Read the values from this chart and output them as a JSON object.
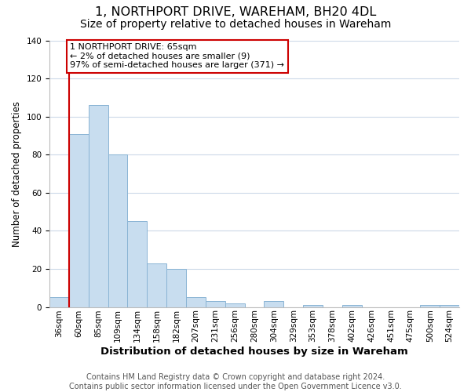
{
  "title": "1, NORTHPORT DRIVE, WAREHAM, BH20 4DL",
  "subtitle": "Size of property relative to detached houses in Wareham",
  "xlabel": "Distribution of detached houses by size in Wareham",
  "ylabel": "Number of detached properties",
  "bins": [
    "36sqm",
    "60sqm",
    "85sqm",
    "109sqm",
    "134sqm",
    "158sqm",
    "182sqm",
    "207sqm",
    "231sqm",
    "256sqm",
    "280sqm",
    "304sqm",
    "329sqm",
    "353sqm",
    "378sqm",
    "402sqm",
    "426sqm",
    "451sqm",
    "475sqm",
    "500sqm",
    "524sqm"
  ],
  "values": [
    5,
    91,
    106,
    80,
    45,
    23,
    20,
    5,
    3,
    2,
    0,
    3,
    0,
    1,
    0,
    1,
    0,
    0,
    0,
    1,
    1
  ],
  "bar_color": "#c8ddef",
  "bar_edge_color": "#8ab4d4",
  "vline_color": "#cc0000",
  "annotation_text": "1 NORTHPORT DRIVE: 65sqm\n← 2% of detached houses are smaller (9)\n97% of semi-detached houses are larger (371) →",
  "annotation_box_color": "#ffffff",
  "annotation_box_edge_color": "#cc0000",
  "ylim": [
    0,
    140
  ],
  "yticks": [
    0,
    20,
    40,
    60,
    80,
    100,
    120,
    140
  ],
  "footer_line1": "Contains HM Land Registry data © Crown copyright and database right 2024.",
  "footer_line2": "Contains public sector information licensed under the Open Government Licence v3.0.",
  "bg_color": "#ffffff",
  "grid_color": "#ccd9e8",
  "title_fontsize": 11.5,
  "subtitle_fontsize": 10,
  "xlabel_fontsize": 9.5,
  "ylabel_fontsize": 8.5,
  "tick_fontsize": 7.5,
  "footer_fontsize": 7
}
